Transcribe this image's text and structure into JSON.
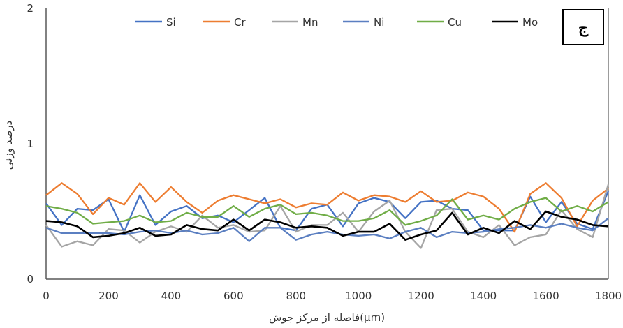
{
  "chart_data": {
    "type": "line",
    "panel_label": "ج",
    "xlabel": "فاصله از مرکز جوش(μm)",
    "ylabel": "درصد وزنی",
    "xlim": [
      0,
      1800
    ],
    "ylim": [
      0,
      2
    ],
    "xticks": [
      0,
      200,
      400,
      600,
      800,
      1000,
      1200,
      1400,
      1600,
      1800
    ],
    "yticks": [
      0,
      1,
      2
    ],
    "grid": false,
    "legend_position": "top",
    "x": [
      0,
      50,
      100,
      150,
      200,
      250,
      300,
      350,
      400,
      450,
      500,
      550,
      600,
      650,
      700,
      750,
      800,
      850,
      900,
      950,
      1000,
      1050,
      1100,
      1150,
      1200,
      1250,
      1300,
      1350,
      1400,
      1450,
      1500,
      1550,
      1600,
      1650,
      1700,
      1750,
      1800
    ],
    "series": [
      {
        "name": "Si",
        "color": "#4472C4",
        "values": [
          0.56,
          0.4,
          0.52,
          0.51,
          0.59,
          0.35,
          0.62,
          0.4,
          0.5,
          0.54,
          0.45,
          0.47,
          0.42,
          0.51,
          0.6,
          0.38,
          0.36,
          0.52,
          0.55,
          0.39,
          0.56,
          0.6,
          0.57,
          0.45,
          0.57,
          0.58,
          0.52,
          0.51,
          0.36,
          0.36,
          0.36,
          0.61,
          0.42,
          0.57,
          0.41,
          0.37,
          0.65
        ]
      },
      {
        "name": "Cr",
        "color": "#ED7D31",
        "values": [
          0.62,
          0.71,
          0.63,
          0.48,
          0.6,
          0.55,
          0.71,
          0.57,
          0.68,
          0.57,
          0.49,
          0.58,
          0.62,
          0.59,
          0.56,
          0.59,
          0.53,
          0.56,
          0.55,
          0.64,
          0.58,
          0.62,
          0.61,
          0.57,
          0.65,
          0.57,
          0.58,
          0.64,
          0.61,
          0.52,
          0.35,
          0.63,
          0.71,
          0.6,
          0.39,
          0.58,
          0.67
        ]
      },
      {
        "name": "Mn",
        "color": "#A5A5A5",
        "values": [
          0.4,
          0.24,
          0.28,
          0.25,
          0.37,
          0.36,
          0.27,
          0.35,
          0.39,
          0.35,
          0.47,
          0.38,
          0.4,
          0.35,
          0.36,
          0.54,
          0.35,
          0.4,
          0.4,
          0.49,
          0.35,
          0.5,
          0.58,
          0.35,
          0.23,
          0.51,
          0.52,
          0.35,
          0.31,
          0.4,
          0.25,
          0.31,
          0.33,
          0.51,
          0.37,
          0.31,
          0.7
        ]
      },
      {
        "name": "Ni",
        "color": "#5B7FC1",
        "values": [
          0.38,
          0.34,
          0.34,
          0.34,
          0.34,
          0.33,
          0.35,
          0.36,
          0.34,
          0.36,
          0.33,
          0.34,
          0.38,
          0.28,
          0.38,
          0.38,
          0.29,
          0.33,
          0.35,
          0.33,
          0.32,
          0.33,
          0.3,
          0.35,
          0.38,
          0.31,
          0.35,
          0.34,
          0.35,
          0.37,
          0.38,
          0.4,
          0.38,
          0.41,
          0.38,
          0.36,
          0.45
        ]
      },
      {
        "name": "Cu",
        "color": "#70AD47",
        "values": [
          0.54,
          0.52,
          0.49,
          0.41,
          0.42,
          0.43,
          0.47,
          0.42,
          0.43,
          0.49,
          0.46,
          0.46,
          0.54,
          0.46,
          0.52,
          0.55,
          0.48,
          0.49,
          0.47,
          0.43,
          0.43,
          0.45,
          0.51,
          0.4,
          0.43,
          0.47,
          0.59,
          0.44,
          0.47,
          0.44,
          0.52,
          0.57,
          0.6,
          0.5,
          0.54,
          0.5,
          0.57
        ]
      },
      {
        "name": "Mo",
        "color": "#000000",
        "values": [
          0.43,
          0.42,
          0.39,
          0.31,
          0.32,
          0.34,
          0.38,
          0.32,
          0.33,
          0.4,
          0.37,
          0.36,
          0.44,
          0.36,
          0.44,
          0.42,
          0.38,
          0.39,
          0.38,
          0.32,
          0.35,
          0.35,
          0.41,
          0.29,
          0.33,
          0.36,
          0.49,
          0.33,
          0.38,
          0.34,
          0.43,
          0.37,
          0.5,
          0.46,
          0.44,
          0.4,
          0.39
        ]
      }
    ]
  }
}
